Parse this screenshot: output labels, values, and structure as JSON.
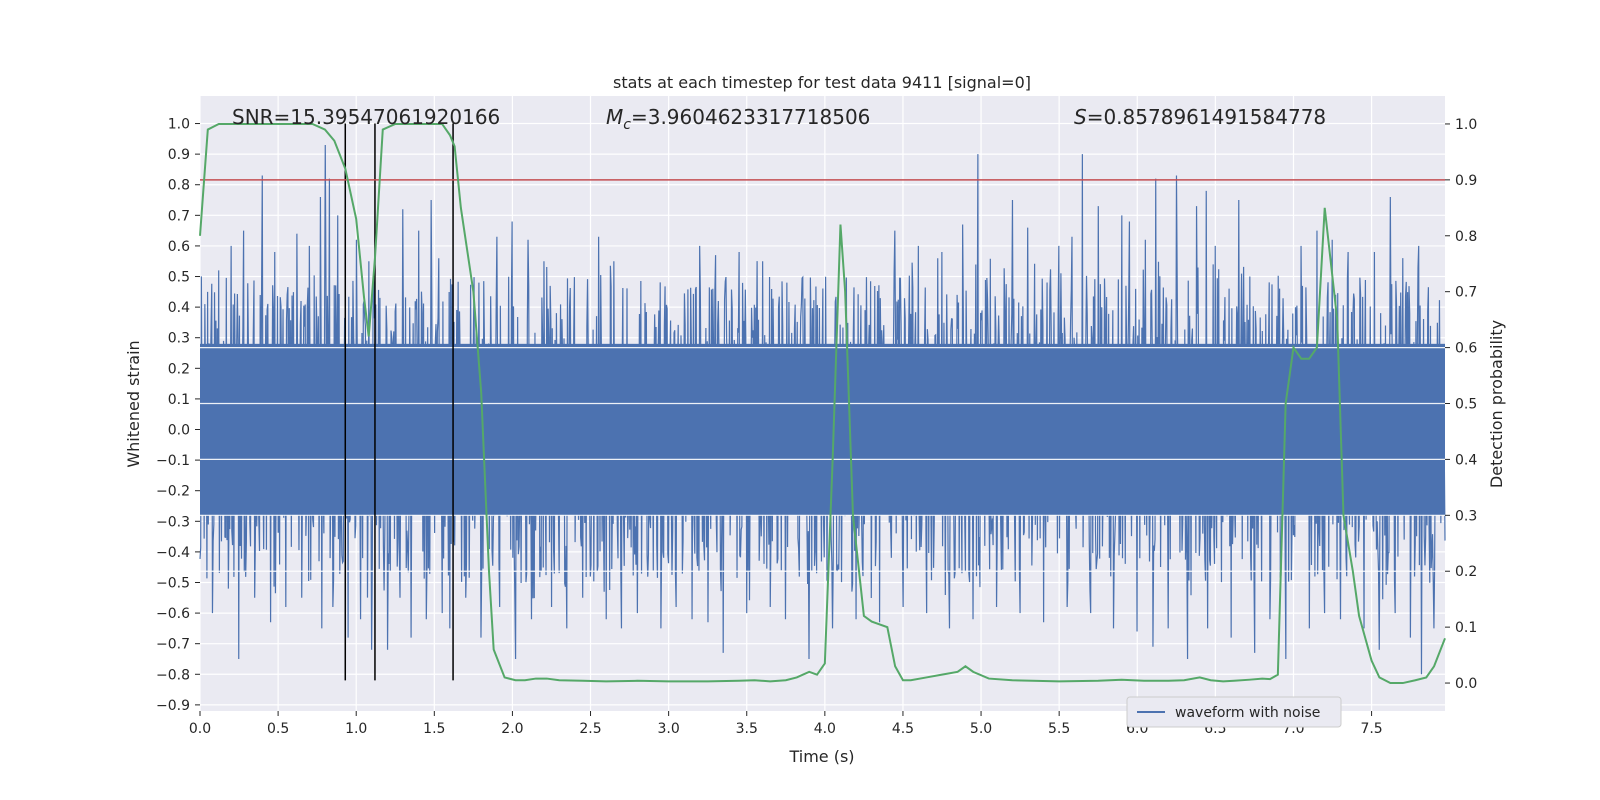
{
  "chart_data": {
    "type": "line",
    "title": "stats at each timestep for test data 9411 [signal=0]",
    "xlabel": "Time (s)",
    "ylabel_left": "Whitened strain",
    "ylabel_right": "Detection probability",
    "xlim": [
      0.0,
      7.97
    ],
    "ylim_left": [
      -0.92,
      1.09
    ],
    "ylim_right": [
      -0.05,
      1.05
    ],
    "x_ticks": [
      "0.0",
      "0.5",
      "1.0",
      "1.5",
      "2.0",
      "2.5",
      "3.0",
      "3.5",
      "4.0",
      "4.5",
      "5.0",
      "5.5",
      "6.0",
      "6.5",
      "7.0",
      "7.5"
    ],
    "x_tick_values": [
      0.0,
      0.5,
      1.0,
      1.5,
      2.0,
      2.5,
      3.0,
      3.5,
      4.0,
      4.5,
      5.0,
      5.5,
      6.0,
      6.5,
      7.0,
      7.5
    ],
    "y_left_ticks": [
      "1.0",
      "0.9",
      "0.8",
      "0.7",
      "0.6",
      "0.5",
      "0.4",
      "0.3",
      "0.2",
      "0.1",
      "0.0",
      "−0.1",
      "−0.2",
      "−0.3",
      "−0.4",
      "−0.5",
      "−0.6",
      "−0.7",
      "−0.8",
      "−0.9"
    ],
    "y_left_tick_values": [
      1.0,
      0.9,
      0.8,
      0.7,
      0.6,
      0.5,
      0.4,
      0.3,
      0.2,
      0.1,
      0.0,
      -0.1,
      -0.2,
      -0.3,
      -0.4,
      -0.5,
      -0.6,
      -0.7,
      -0.8,
      -0.9
    ],
    "y_right_ticks": [
      "1.0",
      "0.9",
      "0.8",
      "0.7",
      "0.6",
      "0.5",
      "0.4",
      "0.3",
      "0.2",
      "0.1",
      "0.0"
    ],
    "y_right_tick_values": [
      1.0,
      0.9,
      0.8,
      0.7,
      0.6,
      0.5,
      0.4,
      0.3,
      0.2,
      0.1,
      0.0
    ],
    "annotations": {
      "snr": "SNR=15.39547061920166",
      "mc_symbol": "M",
      "mc_sub": "c",
      "mc_value": "=3.9604623317718506",
      "s_symbol": "S",
      "s_value": "=0.8578961491584778"
    },
    "legend": {
      "label": "waveform with noise",
      "position": "lower right"
    },
    "threshold": {
      "value": 0.9,
      "axis": "right",
      "color": "#c44e52"
    },
    "vlines": {
      "x": [
        0.93,
        1.12,
        1.62
      ],
      "ymin": -0.82,
      "ymax": 1.0,
      "color": "#000000"
    },
    "waveform": {
      "name": "waveform with noise",
      "color": "#4c72b0",
      "t_start": 0.0,
      "t_end": 7.97,
      "core_amplitude": 0.28,
      "peaks_positive": [
        [
          0.05,
          0.45
        ],
        [
          0.12,
          0.52
        ],
        [
          0.2,
          0.6
        ],
        [
          0.28,
          0.65
        ],
        [
          0.35,
          0.55
        ],
        [
          0.4,
          0.83
        ],
        [
          0.48,
          0.58
        ],
        [
          0.55,
          0.55
        ],
        [
          0.62,
          0.64
        ],
        [
          0.7,
          0.6
        ],
        [
          0.77,
          0.76
        ],
        [
          0.8,
          0.93
        ],
        [
          0.83,
          0.82
        ],
        [
          0.88,
          0.7
        ],
        [
          1.0,
          0.62
        ],
        [
          1.08,
          0.55
        ],
        [
          1.2,
          0.67
        ],
        [
          1.3,
          0.72
        ],
        [
          1.4,
          0.65
        ],
        [
          1.48,
          0.75
        ],
        [
          1.6,
          0.68
        ],
        [
          1.7,
          0.58
        ],
        [
          1.8,
          0.68
        ],
        [
          1.9,
          0.63
        ],
        [
          2.0,
          0.68
        ],
        [
          2.1,
          0.62
        ],
        [
          2.2,
          0.55
        ],
        [
          2.35,
          0.65
        ],
        [
          2.45,
          0.62
        ],
        [
          2.55,
          0.63
        ],
        [
          2.65,
          0.55
        ],
        [
          2.8,
          0.62
        ],
        [
          2.95,
          0.6
        ],
        [
          3.05,
          0.58
        ],
        [
          3.2,
          0.6
        ],
        [
          3.3,
          0.57
        ],
        [
          3.45,
          0.58
        ],
        [
          3.6,
          0.55
        ],
        [
          3.75,
          0.7
        ],
        [
          3.9,
          0.62
        ],
        [
          4.05,
          0.6
        ],
        [
          4.2,
          0.63
        ],
        [
          4.35,
          0.6
        ],
        [
          4.45,
          0.65
        ],
        [
          4.6,
          0.6
        ],
        [
          4.75,
          0.58
        ],
        [
          4.88,
          0.67
        ],
        [
          4.98,
          0.9
        ],
        [
          5.1,
          0.68
        ],
        [
          5.2,
          0.75
        ],
        [
          5.3,
          0.66
        ],
        [
          5.4,
          0.78
        ],
        [
          5.5,
          0.6
        ],
        [
          5.58,
          0.63
        ],
        [
          5.65,
          0.9
        ],
        [
          5.75,
          0.73
        ],
        [
          5.85,
          0.73
        ],
        [
          5.9,
          0.7
        ],
        [
          5.95,
          0.68
        ],
        [
          6.05,
          0.62
        ],
        [
          6.12,
          0.82
        ],
        [
          6.2,
          0.7
        ],
        [
          6.25,
          0.83
        ],
        [
          6.32,
          0.86
        ],
        [
          6.38,
          0.73
        ],
        [
          6.44,
          0.78
        ],
        [
          6.5,
          0.6
        ],
        [
          6.6,
          0.7
        ],
        [
          6.65,
          0.75
        ],
        [
          6.75,
          0.65
        ],
        [
          6.85,
          0.73
        ],
        [
          6.95,
          0.65
        ],
        [
          7.05,
          0.6
        ],
        [
          7.15,
          0.65
        ],
        [
          7.25,
          0.62
        ],
        [
          7.35,
          0.58
        ],
        [
          7.45,
          0.7
        ],
        [
          7.52,
          0.58
        ],
        [
          7.62,
          0.76
        ],
        [
          7.7,
          0.56
        ],
        [
          7.8,
          0.6
        ],
        [
          7.9,
          0.62
        ]
      ],
      "peaks_negative": [
        [
          0.08,
          -0.6
        ],
        [
          0.18,
          -0.52
        ],
        [
          0.25,
          -0.75
        ],
        [
          0.35,
          -0.55
        ],
        [
          0.45,
          -0.63
        ],
        [
          0.55,
          -0.58
        ],
        [
          0.65,
          -0.55
        ],
        [
          0.78,
          -0.65
        ],
        [
          0.85,
          -0.58
        ],
        [
          0.95,
          -0.68
        ],
        [
          1.03,
          -0.62
        ],
        [
          1.1,
          -0.72
        ],
        [
          1.2,
          -0.72
        ],
        [
          1.28,
          -0.55
        ],
        [
          1.35,
          -0.68
        ],
        [
          1.45,
          -0.62
        ],
        [
          1.55,
          -0.6
        ],
        [
          1.6,
          -0.65
        ],
        [
          1.7,
          -0.55
        ],
        [
          1.8,
          -0.68
        ],
        [
          1.92,
          -0.58
        ],
        [
          2.02,
          -0.75
        ],
        [
          2.12,
          -0.62
        ],
        [
          2.25,
          -0.58
        ],
        [
          2.35,
          -0.65
        ],
        [
          2.45,
          -0.55
        ],
        [
          2.6,
          -0.62
        ],
        [
          2.7,
          -0.65
        ],
        [
          2.8,
          -0.6
        ],
        [
          2.95,
          -0.65
        ],
        [
          3.05,
          -0.58
        ],
        [
          3.15,
          -0.62
        ],
        [
          3.25,
          -0.63
        ],
        [
          3.35,
          -0.73
        ],
        [
          3.5,
          -0.6
        ],
        [
          3.65,
          -0.58
        ],
        [
          3.75,
          -0.62
        ],
        [
          3.9,
          -0.75
        ],
        [
          4.05,
          -0.65
        ],
        [
          4.2,
          -0.62
        ],
        [
          4.35,
          -0.63
        ],
        [
          4.5,
          -0.58
        ],
        [
          4.65,
          -0.6
        ],
        [
          4.8,
          -0.65
        ],
        [
          4.95,
          -0.62
        ],
        [
          5.1,
          -0.58
        ],
        [
          5.25,
          -0.6
        ],
        [
          5.4,
          -0.63
        ],
        [
          5.55,
          -0.58
        ],
        [
          5.7,
          -0.6
        ],
        [
          5.85,
          -0.65
        ],
        [
          6.0,
          -0.66
        ],
        [
          6.1,
          -0.71
        ],
        [
          6.2,
          -0.65
        ],
        [
          6.32,
          -0.75
        ],
        [
          6.45,
          -0.65
        ],
        [
          6.6,
          -0.68
        ],
        [
          6.75,
          -0.73
        ],
        [
          6.85,
          -0.62
        ],
        [
          6.95,
          -0.75
        ],
        [
          7.1,
          -0.65
        ],
        [
          7.2,
          -0.6
        ],
        [
          7.3,
          -0.62
        ],
        [
          7.45,
          -0.65
        ],
        [
          7.55,
          -0.72
        ],
        [
          7.65,
          -0.6
        ],
        [
          7.75,
          -0.68
        ],
        [
          7.82,
          -0.8
        ],
        [
          7.9,
          -0.65
        ]
      ]
    },
    "probability": {
      "name": "detection probability",
      "color": "#55a868",
      "x": [
        0.0,
        0.05,
        0.12,
        0.2,
        0.35,
        0.55,
        0.72,
        0.8,
        0.86,
        0.93,
        1.0,
        1.05,
        1.08,
        1.12,
        1.17,
        1.25,
        1.4,
        1.55,
        1.6,
        1.63,
        1.67,
        1.75,
        1.8,
        1.85,
        1.88,
        1.95,
        2.02,
        2.08,
        2.15,
        2.22,
        2.3,
        2.45,
        2.6,
        2.8,
        3.0,
        3.25,
        3.45,
        3.55,
        3.65,
        3.75,
        3.82,
        3.9,
        3.95,
        4.0,
        4.05,
        4.1,
        4.13,
        4.18,
        4.25,
        4.3,
        4.4,
        4.45,
        4.5,
        4.55,
        4.65,
        4.75,
        4.85,
        4.9,
        4.95,
        5.05,
        5.2,
        5.5,
        5.75,
        5.9,
        6.05,
        6.2,
        6.3,
        6.4,
        6.47,
        6.55,
        6.62,
        6.72,
        6.8,
        6.85,
        6.9,
        6.95,
        7.0,
        7.05,
        7.1,
        7.15,
        7.2,
        7.28,
        7.32,
        7.38,
        7.42,
        7.5,
        7.55,
        7.62,
        7.7,
        7.78,
        7.85,
        7.9,
        7.97
      ],
      "y": [
        0.8,
        0.99,
        1.0,
        1.0,
        1.0,
        1.0,
        1.0,
        0.99,
        0.97,
        0.92,
        0.83,
        0.69,
        0.62,
        0.76,
        0.99,
        1.0,
        1.0,
        1.0,
        0.98,
        0.96,
        0.85,
        0.7,
        0.52,
        0.2,
        0.06,
        0.01,
        0.005,
        0.005,
        0.008,
        0.008,
        0.005,
        0.004,
        0.003,
        0.004,
        0.003,
        0.003,
        0.004,
        0.005,
        0.003,
        0.005,
        0.01,
        0.02,
        0.015,
        0.035,
        0.4,
        0.82,
        0.7,
        0.3,
        0.12,
        0.11,
        0.1,
        0.03,
        0.005,
        0.005,
        0.01,
        0.015,
        0.02,
        0.03,
        0.02,
        0.008,
        0.005,
        0.003,
        0.004,
        0.006,
        0.004,
        0.004,
        0.005,
        0.01,
        0.005,
        0.003,
        0.004,
        0.006,
        0.008,
        0.007,
        0.015,
        0.5,
        0.6,
        0.58,
        0.58,
        0.6,
        0.85,
        0.65,
        0.3,
        0.2,
        0.12,
        0.04,
        0.01,
        0.0,
        0.0,
        0.005,
        0.01,
        0.03,
        0.08
      ]
    }
  }
}
